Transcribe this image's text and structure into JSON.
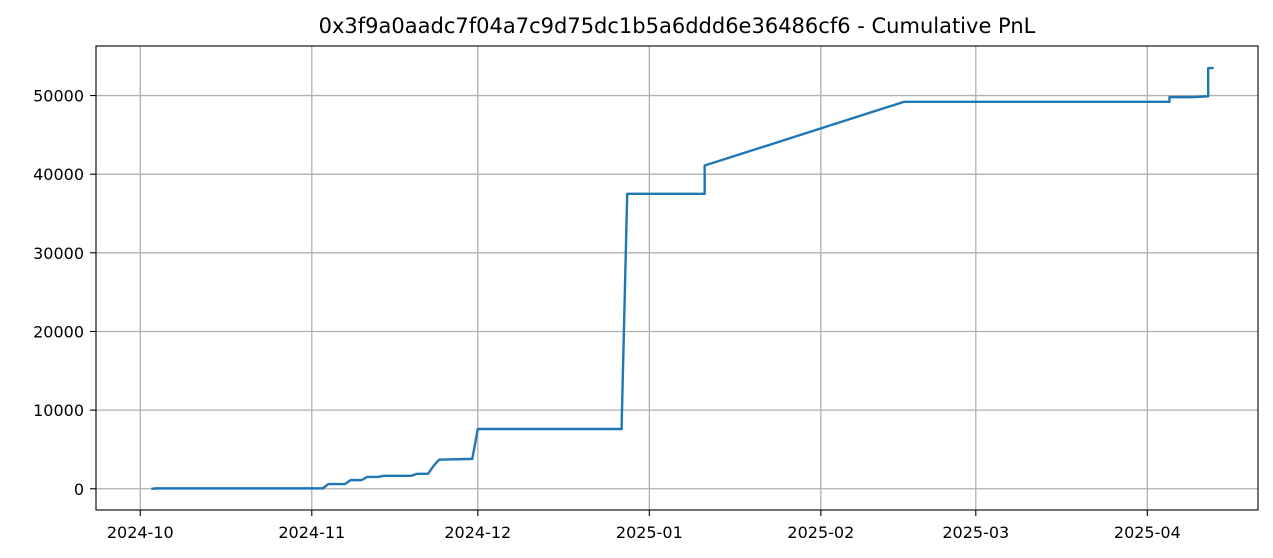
{
  "chart_data": {
    "type": "line",
    "title": "0x3f9a0aadc7f04a7c9d75dc1b5a6ddd6e36486cf6 - Cumulative PnL",
    "xlabel": "",
    "ylabel": "",
    "x_type": "date",
    "xlim": [
      "2024-09-23",
      "2025-04-21"
    ],
    "ylim": [
      -2700,
      56300
    ],
    "x_ticks": [
      "2024-10",
      "2024-11",
      "2024-12",
      "2025-01",
      "2025-02",
      "2025-03",
      "2025-04"
    ],
    "y_ticks": [
      0,
      10000,
      20000,
      30000,
      40000,
      50000
    ],
    "grid": true,
    "legend": "none",
    "colors": {
      "series": "#1f77b4",
      "grid": "#b0b0b0"
    },
    "series": [
      {
        "x": [
          "2024-10-03",
          "2024-10-04",
          "2024-11-03",
          "2024-11-04",
          "2024-11-07",
          "2024-11-08",
          "2024-11-10",
          "2024-11-11",
          "2024-11-13",
          "2024-11-14",
          "2024-11-19",
          "2024-11-20",
          "2024-11-22",
          "2024-11-23",
          "2024-11-24",
          "2024-11-30",
          "2024-12-01",
          "2024-12-27",
          "2024-12-27",
          "2024-12-28",
          "2025-01-11",
          "2025-01-11",
          "2025-02-16",
          "2025-04-05",
          "2025-04-05",
          "2025-04-09",
          "2025-04-12",
          "2025-04-12",
          "2025-04-13"
        ],
        "y": [
          0,
          50,
          50,
          600,
          600,
          1100,
          1100,
          1500,
          1500,
          1650,
          1650,
          1900,
          1900,
          2900,
          3700,
          3800,
          7600,
          7600,
          8200,
          37500,
          37500,
          41100,
          49200,
          49200,
          49800,
          49800,
          49900,
          53500,
          53500
        ]
      }
    ]
  }
}
